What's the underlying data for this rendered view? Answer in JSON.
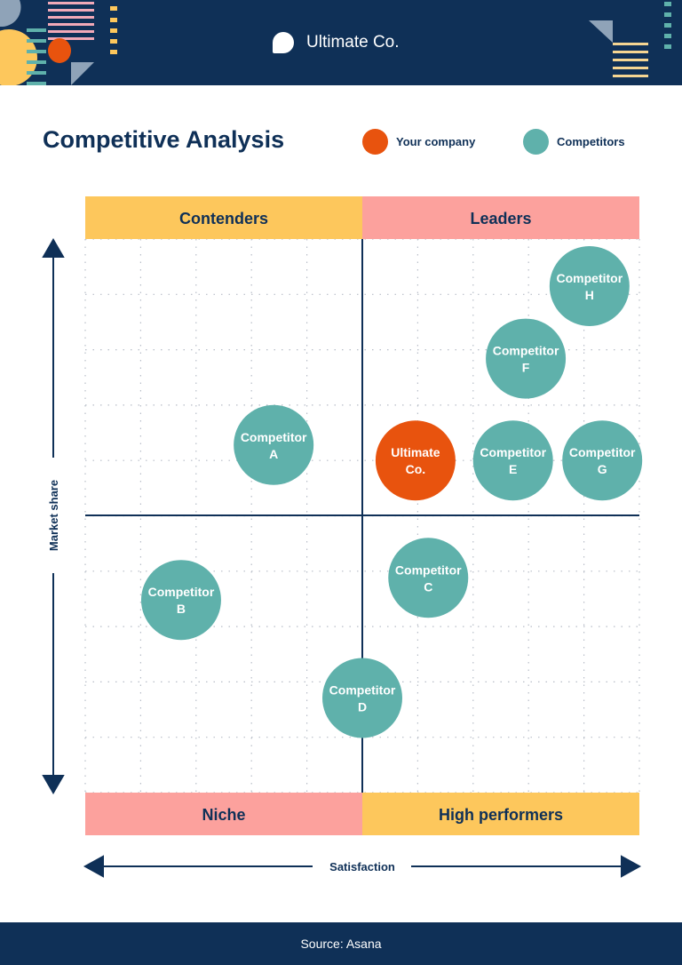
{
  "header": {
    "brand": "Ultimate Co."
  },
  "title": "Competitive Analysis",
  "legend": [
    {
      "label": "Your company",
      "color": "#e8530e"
    },
    {
      "label": "Competitors",
      "color": "#5fb1ab"
    }
  ],
  "footer": {
    "source": "Source: Asana"
  },
  "chart_data": {
    "type": "scatter",
    "title": "Competitive Analysis",
    "xlabel": "Satisfaction",
    "ylabel": "Market share",
    "xlim": [
      -5,
      5
    ],
    "ylim": [
      -5,
      5
    ],
    "grid": true,
    "quadrants": {
      "top_left": "Contenders",
      "top_right": "Leaders",
      "bottom_left": "Niche",
      "bottom_right": "High performers"
    },
    "quadrant_colors": {
      "yellow": "#fdc75c",
      "pink": "#fca19d"
    },
    "points": [
      {
        "label": [
          "Competitor",
          "A"
        ],
        "x": -1.6,
        "y": 1.28,
        "series": "Competitors"
      },
      {
        "label": [
          "Competitor",
          "B"
        ],
        "x": -3.27,
        "y": -1.52,
        "series": "Competitors"
      },
      {
        "label": [
          "Competitor",
          "C"
        ],
        "x": 1.19,
        "y": -1.12,
        "series": "Competitors"
      },
      {
        "label": [
          "Competitor",
          "D"
        ],
        "x": 0,
        "y": -3.29,
        "series": "Competitors"
      },
      {
        "label": [
          "Ultimate",
          "Co."
        ],
        "x": 0.96,
        "y": 1.0,
        "series": "Your company"
      },
      {
        "label": [
          "Competitor",
          "E"
        ],
        "x": 2.72,
        "y": 1.0,
        "series": "Competitors"
      },
      {
        "label": [
          "Competitor",
          "G"
        ],
        "x": 4.33,
        "y": 1.0,
        "series": "Competitors"
      },
      {
        "label": [
          "Competitor",
          "F"
        ],
        "x": 2.95,
        "y": 2.84,
        "series": "Competitors"
      },
      {
        "label": [
          "Competitor",
          "H"
        ],
        "x": 4.1,
        "y": 4.15,
        "series": "Competitors"
      }
    ]
  }
}
